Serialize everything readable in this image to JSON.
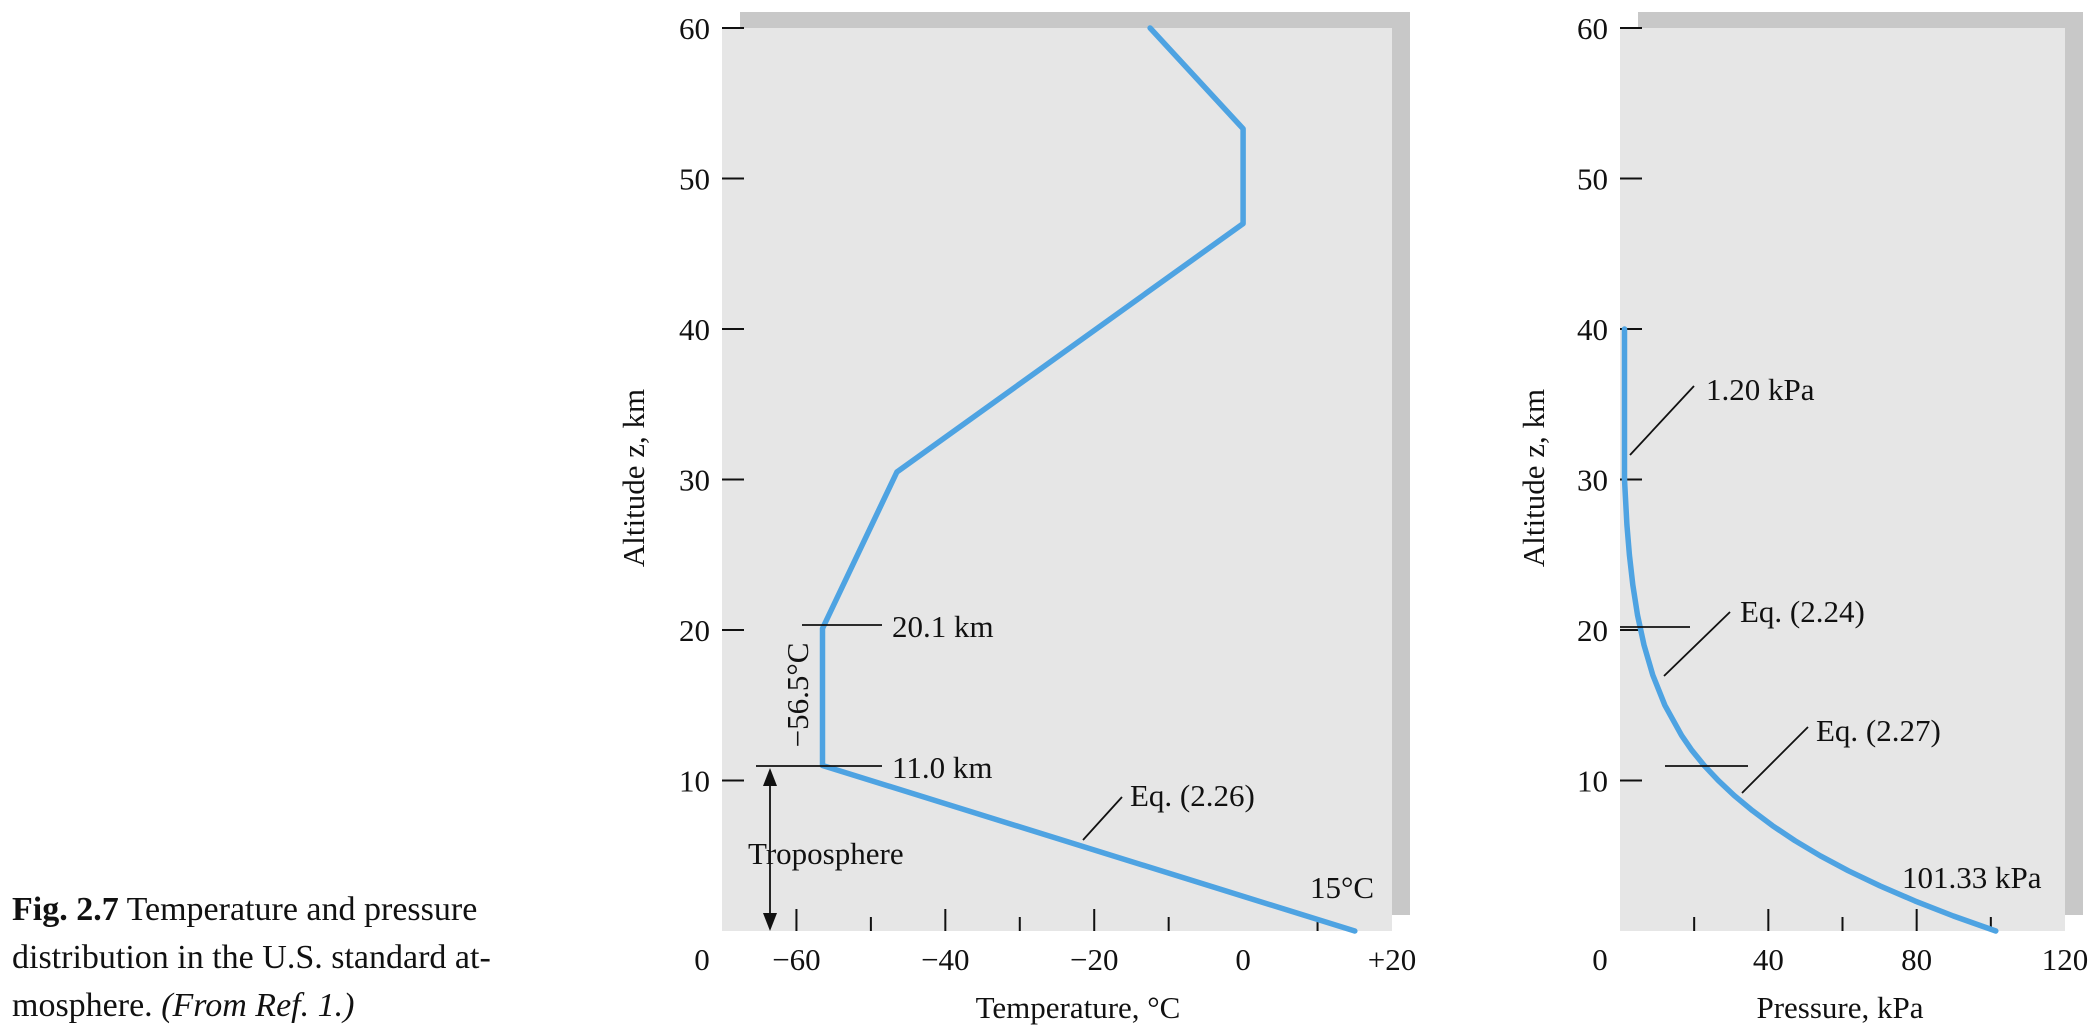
{
  "caption": {
    "figure_number": "Fig. 2.7",
    "text": "Temperature and pressure distribution in the U.S. standard at-mosphere.",
    "reference": "(From Ref. 1.)"
  },
  "chart_data": [
    {
      "type": "line",
      "xlabel": "Temperature, °C",
      "ylabel": "Altitude z, km",
      "xlim": [
        -70,
        20
      ],
      "ylim": [
        0,
        60
      ],
      "x_ticks": [
        -60,
        -40,
        -20,
        0,
        20
      ],
      "x_tick_labels": [
        "−60",
        "−40",
        "−20",
        "0",
        "+20"
      ],
      "y_ticks": [
        10,
        20,
        30,
        40,
        50,
        60
      ],
      "y_tick_labels": [
        "10",
        "20",
        "30",
        "40",
        "50",
        "60"
      ],
      "origin_label": "0",
      "grid": false,
      "series": [
        {
          "x": [
            15,
            -56.5,
            -56.5,
            -46.5,
            0,
            0,
            -12.5
          ],
          "y": [
            0,
            11.0,
            20.1,
            30.5,
            47,
            53.3,
            60
          ],
          "color": "#4ea3e2"
        }
      ],
      "annotations": {
        "alt_20": "20.1 km",
        "alt_11": "11.0 km",
        "temp_min": "−56.5°C",
        "troposphere": "Troposphere",
        "eq": "Eq. (2.26)",
        "surface_temp": "15°C"
      }
    },
    {
      "type": "line",
      "xlabel": "Pressure, kPa",
      "ylabel": "Altitude z, km",
      "xlim": [
        0,
        120
      ],
      "ylim": [
        0,
        60
      ],
      "x_ticks": [
        40,
        80,
        120
      ],
      "x_tick_labels": [
        "40",
        "80",
        "120"
      ],
      "y_ticks": [
        10,
        20,
        30,
        40,
        50,
        60
      ],
      "y_tick_labels": [
        "10",
        "20",
        "30",
        "40",
        "50",
        "60"
      ],
      "origin_label": "0",
      "grid": false,
      "series": [
        {
          "x": [
            101.33,
            89.9,
            79.5,
            70.1,
            61.6,
            54.0,
            47.2,
            41.1,
            35.7,
            30.8,
            26.5,
            22.7,
            19.4,
            16.6,
            12.1,
            8.85,
            6.47,
            4.73,
            3.46,
            2.53,
            1.85,
            1.2,
            1.2
          ],
          "y": [
            0,
            1,
            2,
            3,
            4,
            5,
            6,
            7,
            8,
            9,
            10,
            11,
            12,
            13,
            15,
            17,
            19,
            21,
            23,
            25,
            27,
            30,
            40
          ],
          "color": "#4ea3e2"
        }
      ],
      "annotations": {
        "p_top": "1.20 kPa",
        "eq_224": "Eq. (2.24)",
        "eq_227": "Eq. (2.27)",
        "p_surface": "101.33 kPa"
      }
    }
  ]
}
